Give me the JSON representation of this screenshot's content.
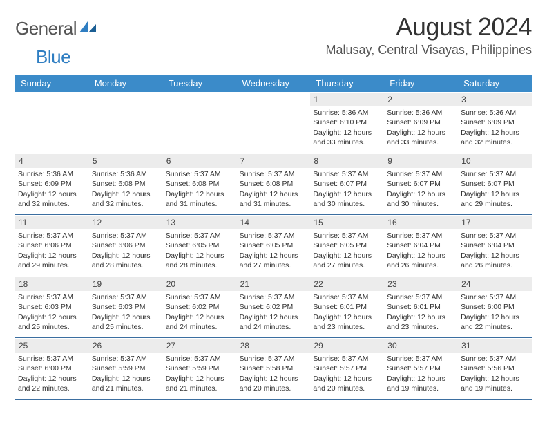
{
  "logo": {
    "text1": "General",
    "text2": "Blue"
  },
  "title": "August 2024",
  "location": "Malusay, Central Visayas, Philippines",
  "colors": {
    "header_bg": "#3b8bc9",
    "header_fg": "#ffffff",
    "daynum_bg": "#ececec",
    "week_border": "#3b6ea0",
    "logo_gray": "#555555",
    "logo_blue": "#2f7ec2"
  },
  "fonts": {
    "title_size_pt": 27,
    "location_size_pt": 14,
    "day_header_size_pt": 10,
    "cell_size_pt": 8
  },
  "day_names": [
    "Sunday",
    "Monday",
    "Tuesday",
    "Wednesday",
    "Thursday",
    "Friday",
    "Saturday"
  ],
  "weeks": [
    [
      {
        "empty": true
      },
      {
        "empty": true
      },
      {
        "empty": true
      },
      {
        "empty": true
      },
      {
        "n": "1",
        "sr": "Sunrise: 5:36 AM",
        "ss": "Sunset: 6:10 PM",
        "d1": "Daylight: 12 hours",
        "d2": "and 33 minutes."
      },
      {
        "n": "2",
        "sr": "Sunrise: 5:36 AM",
        "ss": "Sunset: 6:09 PM",
        "d1": "Daylight: 12 hours",
        "d2": "and 33 minutes."
      },
      {
        "n": "3",
        "sr": "Sunrise: 5:36 AM",
        "ss": "Sunset: 6:09 PM",
        "d1": "Daylight: 12 hours",
        "d2": "and 32 minutes."
      }
    ],
    [
      {
        "n": "4",
        "sr": "Sunrise: 5:36 AM",
        "ss": "Sunset: 6:09 PM",
        "d1": "Daylight: 12 hours",
        "d2": "and 32 minutes."
      },
      {
        "n": "5",
        "sr": "Sunrise: 5:36 AM",
        "ss": "Sunset: 6:08 PM",
        "d1": "Daylight: 12 hours",
        "d2": "and 32 minutes."
      },
      {
        "n": "6",
        "sr": "Sunrise: 5:37 AM",
        "ss": "Sunset: 6:08 PM",
        "d1": "Daylight: 12 hours",
        "d2": "and 31 minutes."
      },
      {
        "n": "7",
        "sr": "Sunrise: 5:37 AM",
        "ss": "Sunset: 6:08 PM",
        "d1": "Daylight: 12 hours",
        "d2": "and 31 minutes."
      },
      {
        "n": "8",
        "sr": "Sunrise: 5:37 AM",
        "ss": "Sunset: 6:07 PM",
        "d1": "Daylight: 12 hours",
        "d2": "and 30 minutes."
      },
      {
        "n": "9",
        "sr": "Sunrise: 5:37 AM",
        "ss": "Sunset: 6:07 PM",
        "d1": "Daylight: 12 hours",
        "d2": "and 30 minutes."
      },
      {
        "n": "10",
        "sr": "Sunrise: 5:37 AM",
        "ss": "Sunset: 6:07 PM",
        "d1": "Daylight: 12 hours",
        "d2": "and 29 minutes."
      }
    ],
    [
      {
        "n": "11",
        "sr": "Sunrise: 5:37 AM",
        "ss": "Sunset: 6:06 PM",
        "d1": "Daylight: 12 hours",
        "d2": "and 29 minutes."
      },
      {
        "n": "12",
        "sr": "Sunrise: 5:37 AM",
        "ss": "Sunset: 6:06 PM",
        "d1": "Daylight: 12 hours",
        "d2": "and 28 minutes."
      },
      {
        "n": "13",
        "sr": "Sunrise: 5:37 AM",
        "ss": "Sunset: 6:05 PM",
        "d1": "Daylight: 12 hours",
        "d2": "and 28 minutes."
      },
      {
        "n": "14",
        "sr": "Sunrise: 5:37 AM",
        "ss": "Sunset: 6:05 PM",
        "d1": "Daylight: 12 hours",
        "d2": "and 27 minutes."
      },
      {
        "n": "15",
        "sr": "Sunrise: 5:37 AM",
        "ss": "Sunset: 6:05 PM",
        "d1": "Daylight: 12 hours",
        "d2": "and 27 minutes."
      },
      {
        "n": "16",
        "sr": "Sunrise: 5:37 AM",
        "ss": "Sunset: 6:04 PM",
        "d1": "Daylight: 12 hours",
        "d2": "and 26 minutes."
      },
      {
        "n": "17",
        "sr": "Sunrise: 5:37 AM",
        "ss": "Sunset: 6:04 PM",
        "d1": "Daylight: 12 hours",
        "d2": "and 26 minutes."
      }
    ],
    [
      {
        "n": "18",
        "sr": "Sunrise: 5:37 AM",
        "ss": "Sunset: 6:03 PM",
        "d1": "Daylight: 12 hours",
        "d2": "and 25 minutes."
      },
      {
        "n": "19",
        "sr": "Sunrise: 5:37 AM",
        "ss": "Sunset: 6:03 PM",
        "d1": "Daylight: 12 hours",
        "d2": "and 25 minutes."
      },
      {
        "n": "20",
        "sr": "Sunrise: 5:37 AM",
        "ss": "Sunset: 6:02 PM",
        "d1": "Daylight: 12 hours",
        "d2": "and 24 minutes."
      },
      {
        "n": "21",
        "sr": "Sunrise: 5:37 AM",
        "ss": "Sunset: 6:02 PM",
        "d1": "Daylight: 12 hours",
        "d2": "and 24 minutes."
      },
      {
        "n": "22",
        "sr": "Sunrise: 5:37 AM",
        "ss": "Sunset: 6:01 PM",
        "d1": "Daylight: 12 hours",
        "d2": "and 23 minutes."
      },
      {
        "n": "23",
        "sr": "Sunrise: 5:37 AM",
        "ss": "Sunset: 6:01 PM",
        "d1": "Daylight: 12 hours",
        "d2": "and 23 minutes."
      },
      {
        "n": "24",
        "sr": "Sunrise: 5:37 AM",
        "ss": "Sunset: 6:00 PM",
        "d1": "Daylight: 12 hours",
        "d2": "and 22 minutes."
      }
    ],
    [
      {
        "n": "25",
        "sr": "Sunrise: 5:37 AM",
        "ss": "Sunset: 6:00 PM",
        "d1": "Daylight: 12 hours",
        "d2": "and 22 minutes."
      },
      {
        "n": "26",
        "sr": "Sunrise: 5:37 AM",
        "ss": "Sunset: 5:59 PM",
        "d1": "Daylight: 12 hours",
        "d2": "and 21 minutes."
      },
      {
        "n": "27",
        "sr": "Sunrise: 5:37 AM",
        "ss": "Sunset: 5:59 PM",
        "d1": "Daylight: 12 hours",
        "d2": "and 21 minutes."
      },
      {
        "n": "28",
        "sr": "Sunrise: 5:37 AM",
        "ss": "Sunset: 5:58 PM",
        "d1": "Daylight: 12 hours",
        "d2": "and 20 minutes."
      },
      {
        "n": "29",
        "sr": "Sunrise: 5:37 AM",
        "ss": "Sunset: 5:57 PM",
        "d1": "Daylight: 12 hours",
        "d2": "and 20 minutes."
      },
      {
        "n": "30",
        "sr": "Sunrise: 5:37 AM",
        "ss": "Sunset: 5:57 PM",
        "d1": "Daylight: 12 hours",
        "d2": "and 19 minutes."
      },
      {
        "n": "31",
        "sr": "Sunrise: 5:37 AM",
        "ss": "Sunset: 5:56 PM",
        "d1": "Daylight: 12 hours",
        "d2": "and 19 minutes."
      }
    ]
  ]
}
